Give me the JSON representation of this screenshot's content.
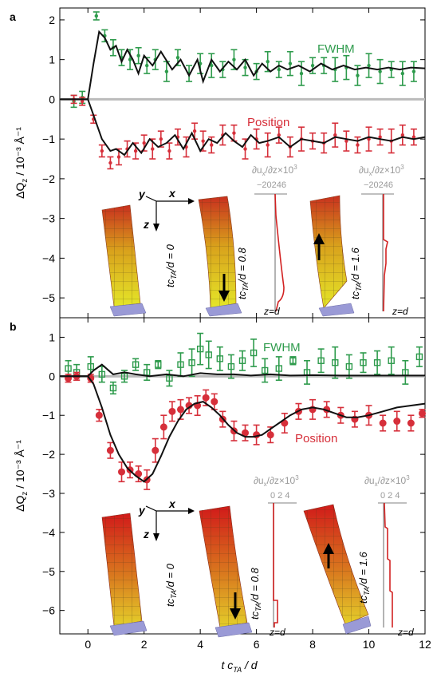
{
  "colors": {
    "fwhm": "#2e9b4c",
    "position": "#d62f3a",
    "sim": "#111111",
    "zero": "#bbbbbb",
    "inset_axis": "#9a9a9a",
    "strain": "#d22222"
  },
  "x_label": "t c",
  "x_label_sub": "TA",
  "x_label_tail": " / d",
  "chart_data": [
    {
      "type": "scatter",
      "panel_label": "a",
      "ylabel_main": "ΔQ",
      "ylabel_sub": "z",
      "ylabel_tail": " / 10⁻³ Å⁻¹",
      "xlim": [
        -1,
        12
      ],
      "ylim": [
        -5.5,
        2.3
      ],
      "yticks": [
        "2",
        "1",
        "0",
        "−1",
        "−2",
        "−3",
        "−4",
        "−5"
      ],
      "ytick_values": [
        2,
        1,
        0,
        -1,
        -2,
        -3,
        -4,
        -5
      ],
      "xticks": [
        "0",
        "2",
        "4",
        "6",
        "8",
        "10",
        "12"
      ],
      "xtick_values": [
        0,
        2,
        4,
        6,
        8,
        10,
        12
      ],
      "series": [
        {
          "name": "FWHM",
          "x": [
            -0.5,
            -0.2,
            0.3,
            0.6,
            0.9,
            1.2,
            1.5,
            1.8,
            2.1,
            2.4,
            2.8,
            3.2,
            3.6,
            4.0,
            4.4,
            4.8,
            5.2,
            5.6,
            6.0,
            6.4,
            6.8,
            7.2,
            7.6,
            8.0,
            8.4,
            8.8,
            9.2,
            9.6,
            10.0,
            10.4,
            10.8,
            11.2,
            11.6
          ],
          "y": [
            -0.05,
            0.05,
            2.1,
            1.6,
            1.3,
            1.05,
            1.0,
            1.1,
            0.85,
            1.0,
            0.7,
            1.05,
            0.65,
            0.9,
            0.85,
            0.75,
            1.0,
            0.8,
            0.7,
            0.95,
            0.75,
            0.9,
            0.65,
            0.85,
            0.85,
            0.75,
            0.8,
            0.6,
            0.85,
            0.7,
            0.75,
            0.65,
            0.7
          ],
          "err": [
            0.15,
            0.15,
            0.1,
            0.15,
            0.2,
            0.2,
            0.25,
            0.2,
            0.2,
            0.25,
            0.25,
            0.2,
            0.2,
            0.25,
            0.3,
            0.2,
            0.25,
            0.2,
            0.2,
            0.25,
            0.2,
            0.3,
            0.3,
            0.2,
            0.2,
            0.3,
            0.3,
            0.25,
            0.3,
            0.3,
            0.2,
            0.3,
            0.25
          ]
        },
        {
          "name": "Position",
          "x": [
            -0.5,
            -0.2,
            0.2,
            0.5,
            0.8,
            1.1,
            1.4,
            1.7,
            2.0,
            2.3,
            2.6,
            2.9,
            3.2,
            3.5,
            3.8,
            4.1,
            4.4,
            4.8,
            5.2,
            5.6,
            6.0,
            6.4,
            6.8,
            7.2,
            7.6,
            8.0,
            8.4,
            8.8,
            9.2,
            9.6,
            10.0,
            10.4,
            10.8,
            11.2,
            11.6
          ],
          "y": [
            0.0,
            -0.05,
            -0.5,
            -1.3,
            -1.6,
            -1.45,
            -1.25,
            -1.3,
            -1.1,
            -1.25,
            -1.0,
            -1.3,
            -0.95,
            -1.2,
            -0.8,
            -1.05,
            -1.15,
            -0.9,
            -0.85,
            -1.25,
            -1.0,
            -1.15,
            -0.9,
            -1.2,
            -1.0,
            -1.05,
            -1.1,
            -0.9,
            -1.05,
            -1.15,
            -1.0,
            -0.95,
            -1.05,
            -0.9,
            -0.95
          ],
          "err": [
            0.1,
            0.1,
            0.1,
            0.15,
            0.15,
            0.2,
            0.2,
            0.2,
            0.2,
            0.25,
            0.2,
            0.2,
            0.2,
            0.25,
            0.2,
            0.25,
            0.2,
            0.25,
            0.2,
            0.25,
            0.25,
            0.3,
            0.2,
            0.25,
            0.3,
            0.2,
            0.25,
            0.3,
            0.25,
            0.2,
            0.3,
            0.2,
            0.3,
            0.25,
            0.2
          ]
        }
      ],
      "sim_fwhm": {
        "x": [
          -1,
          0,
          0.2,
          0.4,
          0.6,
          0.8,
          1.0,
          1.2,
          1.4,
          1.6,
          1.8,
          2.0,
          2.3,
          2.6,
          3.0,
          3.3,
          3.6,
          3.9,
          4.1,
          4.4,
          4.7,
          5.0,
          5.3,
          5.6,
          5.9,
          6.2,
          6.5,
          6.8,
          7.1,
          7.5,
          7.9,
          8.3,
          8.7,
          9.1,
          9.5,
          9.9,
          10.3,
          10.7,
          11.1,
          11.5,
          12
        ],
        "y": [
          0,
          0,
          0.9,
          1.7,
          1.55,
          1.25,
          1.35,
          0.95,
          1.25,
          1.0,
          0.65,
          1.1,
          0.85,
          1.2,
          0.75,
          1.0,
          0.6,
          1.0,
          0.45,
          1.0,
          0.7,
          0.95,
          0.75,
          1.0,
          0.6,
          0.9,
          0.7,
          0.85,
          0.75,
          0.85,
          0.7,
          0.9,
          0.75,
          0.85,
          0.75,
          0.8,
          0.75,
          0.8,
          0.75,
          0.8,
          0.78
        ]
      },
      "sim_position": {
        "x": [
          -1,
          0,
          0.2,
          0.5,
          0.8,
          1.0,
          1.3,
          1.6,
          1.9,
          2.2,
          2.5,
          2.8,
          3.1,
          3.4,
          3.7,
          4.0,
          4.3,
          4.6,
          4.9,
          5.2,
          5.5,
          5.8,
          6.1,
          6.4,
          6.8,
          7.2,
          7.6,
          8.0,
          8.4,
          8.8,
          9.2,
          9.6,
          10.0,
          10.4,
          10.8,
          11.2,
          11.6,
          12
        ],
        "y": [
          0,
          0,
          -0.4,
          -1.0,
          -1.3,
          -1.25,
          -1.4,
          -1.1,
          -1.35,
          -1.0,
          -1.2,
          -1.1,
          -0.9,
          -1.25,
          -0.85,
          -1.3,
          -1.0,
          -1.1,
          -0.85,
          -1.05,
          -1.2,
          -0.9,
          -1.1,
          -1.05,
          -0.95,
          -1.2,
          -1.0,
          -1.05,
          -1.1,
          -0.95,
          -1.0,
          -1.05,
          -0.95,
          -1.0,
          -1.05,
          -0.95,
          -1.0,
          -0.95
        ]
      },
      "series_labels": {
        "fwhm": "FWHM",
        "position": "Position"
      },
      "insets": {
        "axis_y": "y",
        "axis_x": "x",
        "axis_z": "z",
        "label_t0": "tc",
        "label_t0_sub": "TA",
        "label_t0_tail": "/d = 0",
        "label_t1": "tc",
        "label_t1_sub": "TA",
        "label_t1_tail": "/d = 0.8",
        "label_t2": "tc",
        "label_t2_sub": "TA",
        "label_t2_tail": "/d = 1.6",
        "strain_title": "∂u",
        "strain_title_sub": "x",
        "strain_title_tail": "/∂z×10",
        "strain_title_sup": "3",
        "strain_ticks": "−20246",
        "zd": "z=d"
      }
    },
    {
      "type": "scatter",
      "panel_label": "b",
      "ylabel_main": "ΔQ",
      "ylabel_sub": "z",
      "ylabel_tail": " / 10⁻³ Å⁻¹",
      "xlim": [
        -1,
        12
      ],
      "ylim": [
        -6.6,
        1.5
      ],
      "yticks": [
        "1",
        "0",
        "−1",
        "−2",
        "−3",
        "−4",
        "−5",
        "−6"
      ],
      "ytick_values": [
        1,
        0,
        -1,
        -2,
        -3,
        -4,
        -5,
        -6
      ],
      "xticks": [
        "0",
        "2",
        "4",
        "6",
        "8",
        "10",
        "12"
      ],
      "xtick_values": [
        0,
        2,
        4,
        6,
        8,
        10,
        12
      ],
      "series": [
        {
          "name": "FWHM",
          "x": [
            -0.7,
            -0.4,
            0.1,
            0.5,
            0.9,
            1.3,
            1.7,
            2.1,
            2.5,
            2.9,
            3.3,
            3.7,
            4.0,
            4.3,
            4.7,
            5.1,
            5.5,
            5.9,
            6.3,
            6.8,
            7.3,
            7.8,
            8.3,
            8.8,
            9.3,
            9.8,
            10.3,
            10.8,
            11.3,
            11.8
          ],
          "y": [
            0.2,
            0.1,
            0.25,
            0.05,
            -0.3,
            0.0,
            0.3,
            0.1,
            0.3,
            -0.05,
            0.3,
            0.35,
            0.7,
            0.55,
            0.45,
            0.25,
            0.4,
            0.6,
            0.15,
            0.2,
            0.4,
            0.1,
            0.4,
            0.35,
            0.25,
            0.35,
            0.35,
            0.4,
            0.1,
            0.5
          ],
          "err": [
            0.2,
            0.2,
            0.25,
            0.2,
            0.15,
            0.15,
            0.15,
            0.2,
            0.1,
            0.2,
            0.3,
            0.35,
            0.4,
            0.35,
            0.3,
            0.3,
            0.25,
            0.35,
            0.3,
            0.3,
            0.1,
            0.3,
            0.3,
            0.4,
            0.3,
            0.25,
            0.3,
            0.35,
            0.3,
            0.25
          ]
        },
        {
          "name": "Position",
          "x": [
            -0.7,
            -0.4,
            0.1,
            0.4,
            0.8,
            1.2,
            1.5,
            1.8,
            2.1,
            2.4,
            2.7,
            3.0,
            3.3,
            3.6,
            3.9,
            4.2,
            4.5,
            4.8,
            5.2,
            5.6,
            6.0,
            6.5,
            7.0,
            7.5,
            8.0,
            8.5,
            9.0,
            9.5,
            10.0,
            10.5,
            11.0,
            11.5,
            11.9
          ],
          "y": [
            -0.05,
            0.0,
            -0.05,
            -1.0,
            -1.9,
            -2.45,
            -2.4,
            -2.5,
            -2.65,
            -1.9,
            -1.3,
            -0.9,
            -0.85,
            -0.75,
            -0.75,
            -0.55,
            -0.65,
            -1.1,
            -1.4,
            -1.45,
            -1.5,
            -1.5,
            -1.2,
            -0.9,
            -0.85,
            -0.85,
            -1.0,
            -1.1,
            -1.0,
            -1.2,
            -1.15,
            -1.2,
            -0.95
          ],
          "err": [
            0.1,
            0.1,
            0.1,
            0.15,
            0.2,
            0.25,
            0.2,
            0.2,
            0.25,
            0.3,
            0.3,
            0.25,
            0.25,
            0.2,
            0.25,
            0.2,
            0.2,
            0.2,
            0.25,
            0.2,
            0.25,
            0.2,
            0.25,
            0.2,
            0.25,
            0.2,
            0.2,
            0.2,
            0.25,
            0.2,
            0.25,
            0.2,
            0.1
          ]
        }
      ],
      "sim_fwhm": {
        "x": [
          -1,
          0,
          0.2,
          0.5,
          0.9,
          1.3,
          1.7,
          2.2,
          2.8,
          3.4,
          4.0,
          4.6,
          5.2,
          5.8,
          6.5,
          7.2,
          8.0,
          9.0,
          10.0,
          11.0,
          12
        ],
        "y": [
          0,
          0,
          0.15,
          0.3,
          0.05,
          0.1,
          0.05,
          0.0,
          0.05,
          0.0,
          0.08,
          0.05,
          0.05,
          0.02,
          0.05,
          0.02,
          0.03,
          0.02,
          0.02,
          0.02,
          0.02
        ]
      },
      "sim_position": {
        "x": [
          -1,
          0,
          0.2,
          0.5,
          0.8,
          1.1,
          1.4,
          1.7,
          2.0,
          2.3,
          2.6,
          2.9,
          3.2,
          3.5,
          3.8,
          4.1,
          4.4,
          4.7,
          5.0,
          5.3,
          5.6,
          5.9,
          6.2,
          6.5,
          6.8,
          7.2,
          7.6,
          8.0,
          8.4,
          8.8,
          9.2,
          9.6,
          10.0,
          10.5,
          11.0,
          11.5,
          12
        ],
        "y": [
          0,
          0,
          -0.2,
          -0.8,
          -1.5,
          -2.0,
          -2.35,
          -2.55,
          -2.7,
          -2.5,
          -2.05,
          -1.55,
          -1.15,
          -0.85,
          -0.7,
          -0.65,
          -0.8,
          -1.0,
          -1.25,
          -1.45,
          -1.55,
          -1.55,
          -1.5,
          -1.35,
          -1.2,
          -1.0,
          -0.85,
          -0.8,
          -0.85,
          -0.95,
          -1.05,
          -1.05,
          -1.0,
          -0.9,
          -0.8,
          -0.75,
          -0.7
        ]
      },
      "series_labels": {
        "fwhm": "FWHM",
        "position": "Position"
      },
      "insets": {
        "axis_y": "y",
        "axis_x": "x",
        "axis_z": "z",
        "label_t0": "tc",
        "label_t0_sub": "TA",
        "label_t0_tail": "/d = 0",
        "label_t1": "tc",
        "label_t1_sub": "TA",
        "label_t1_tail": "/d = 0.8",
        "label_t2": "tc",
        "label_t2_sub": "TA",
        "label_t2_tail": "/d = 1.6",
        "strain_title": "∂u",
        "strain_title_sub": "x",
        "strain_title_tail": "/∂z×10",
        "strain_title_sup": "3",
        "strain_ticks": "0 2 4",
        "zd": "z=d"
      }
    }
  ]
}
